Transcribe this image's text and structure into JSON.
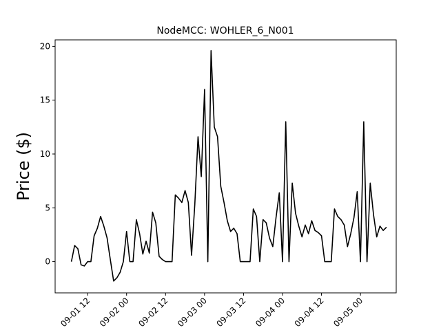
{
  "chart_data": {
    "type": "line",
    "title": "NodeMCC: WOHLER_6_N001",
    "y_label": "Price ($)",
    "x": [
      "09-01 07",
      "09-01 08",
      "09-01 09",
      "09-01 10",
      "09-01 11",
      "09-01 12",
      "09-01 13",
      "09-01 14",
      "09-01 15",
      "09-01 16",
      "09-01 17",
      "09-01 18",
      "09-01 19",
      "09-01 20",
      "09-01 21",
      "09-01 22",
      "09-01 23",
      "09-02 00",
      "09-02 01",
      "09-02 02",
      "09-02 03",
      "09-02 04",
      "09-02 05",
      "09-02 06",
      "09-02 07",
      "09-02 08",
      "09-02 09",
      "09-02 10",
      "09-02 11",
      "09-02 12",
      "09-02 13",
      "09-02 14",
      "09-02 15",
      "09-02 16",
      "09-02 17",
      "09-02 18",
      "09-02 19",
      "09-02 20",
      "09-02 21",
      "09-02 22",
      "09-02 23",
      "09-03 00",
      "09-03 01",
      "09-03 02",
      "09-03 03",
      "09-03 04",
      "09-03 05",
      "09-03 06",
      "09-03 07",
      "09-03 08",
      "09-03 09",
      "09-03 10",
      "09-03 11",
      "09-03 12",
      "09-03 13",
      "09-03 14",
      "09-03 15",
      "09-03 16",
      "09-03 17",
      "09-03 18",
      "09-03 19",
      "09-03 20",
      "09-03 21",
      "09-03 22",
      "09-03 23",
      "09-04 00",
      "09-04 01",
      "09-04 02",
      "09-04 03",
      "09-04 04",
      "09-04 05",
      "09-04 06",
      "09-04 07",
      "09-04 08",
      "09-04 09",
      "09-04 10",
      "09-04 11",
      "09-04 12",
      "09-04 13",
      "09-04 14",
      "09-04 15",
      "09-04 16",
      "09-04 17",
      "09-04 18",
      "09-04 19",
      "09-04 20",
      "09-04 21",
      "09-04 22",
      "09-04 23",
      "09-05 00",
      "09-05 01",
      "09-05 02",
      "09-05 03",
      "09-05 04",
      "09-05 05",
      "09-05 06",
      "09-05 07",
      "09-05 08"
    ],
    "values": [
      0,
      1.5,
      1.2,
      -0.3,
      -0.4,
      0,
      0,
      2.4,
      3.1,
      4.2,
      3.3,
      2.2,
      0.2,
      -1.8,
      -1.5,
      -1.0,
      0,
      2.8,
      0,
      0,
      3.9,
      2.6,
      0.7,
      1.9,
      0.8,
      4.6,
      3.6,
      0.5,
      0.2,
      0,
      0,
      0,
      6.2,
      5.9,
      5.5,
      6.6,
      5.5,
      0.6,
      5.3,
      11.6,
      7.9,
      16.0,
      0,
      19.6,
      12.5,
      11.6,
      7.0,
      5.5,
      3.8,
      2.8,
      3.1,
      2.6,
      0,
      0,
      0,
      0,
      4.9,
      4.2,
      0,
      3.9,
      3.6,
      2.2,
      1.4,
      4.1,
      6.4,
      0,
      13.0,
      0,
      7.3,
      4.5,
      3.3,
      2.3,
      3.4,
      2.6,
      3.8,
      2.9,
      2.7,
      2.4,
      0,
      0,
      0,
      4.9,
      4.2,
      3.9,
      3.4,
      1.4,
      2.6,
      4.1,
      6.5,
      0,
      13.0,
      0,
      7.3,
      4.4,
      2.3,
      3.3,
      2.9,
      3.2
    ],
    "color": "#000000",
    "xlim": [
      "09-01 02",
      "09-05 11"
    ],
    "xticks": [
      "09-01 12",
      "09-02 00",
      "09-02 12",
      "09-03 00",
      "09-03 12",
      "09-04 00",
      "09-04 12",
      "09-05 00"
    ],
    "ylim": [
      -2.9,
      20.6
    ],
    "yticks": [
      0,
      5,
      10,
      15,
      20
    ]
  }
}
